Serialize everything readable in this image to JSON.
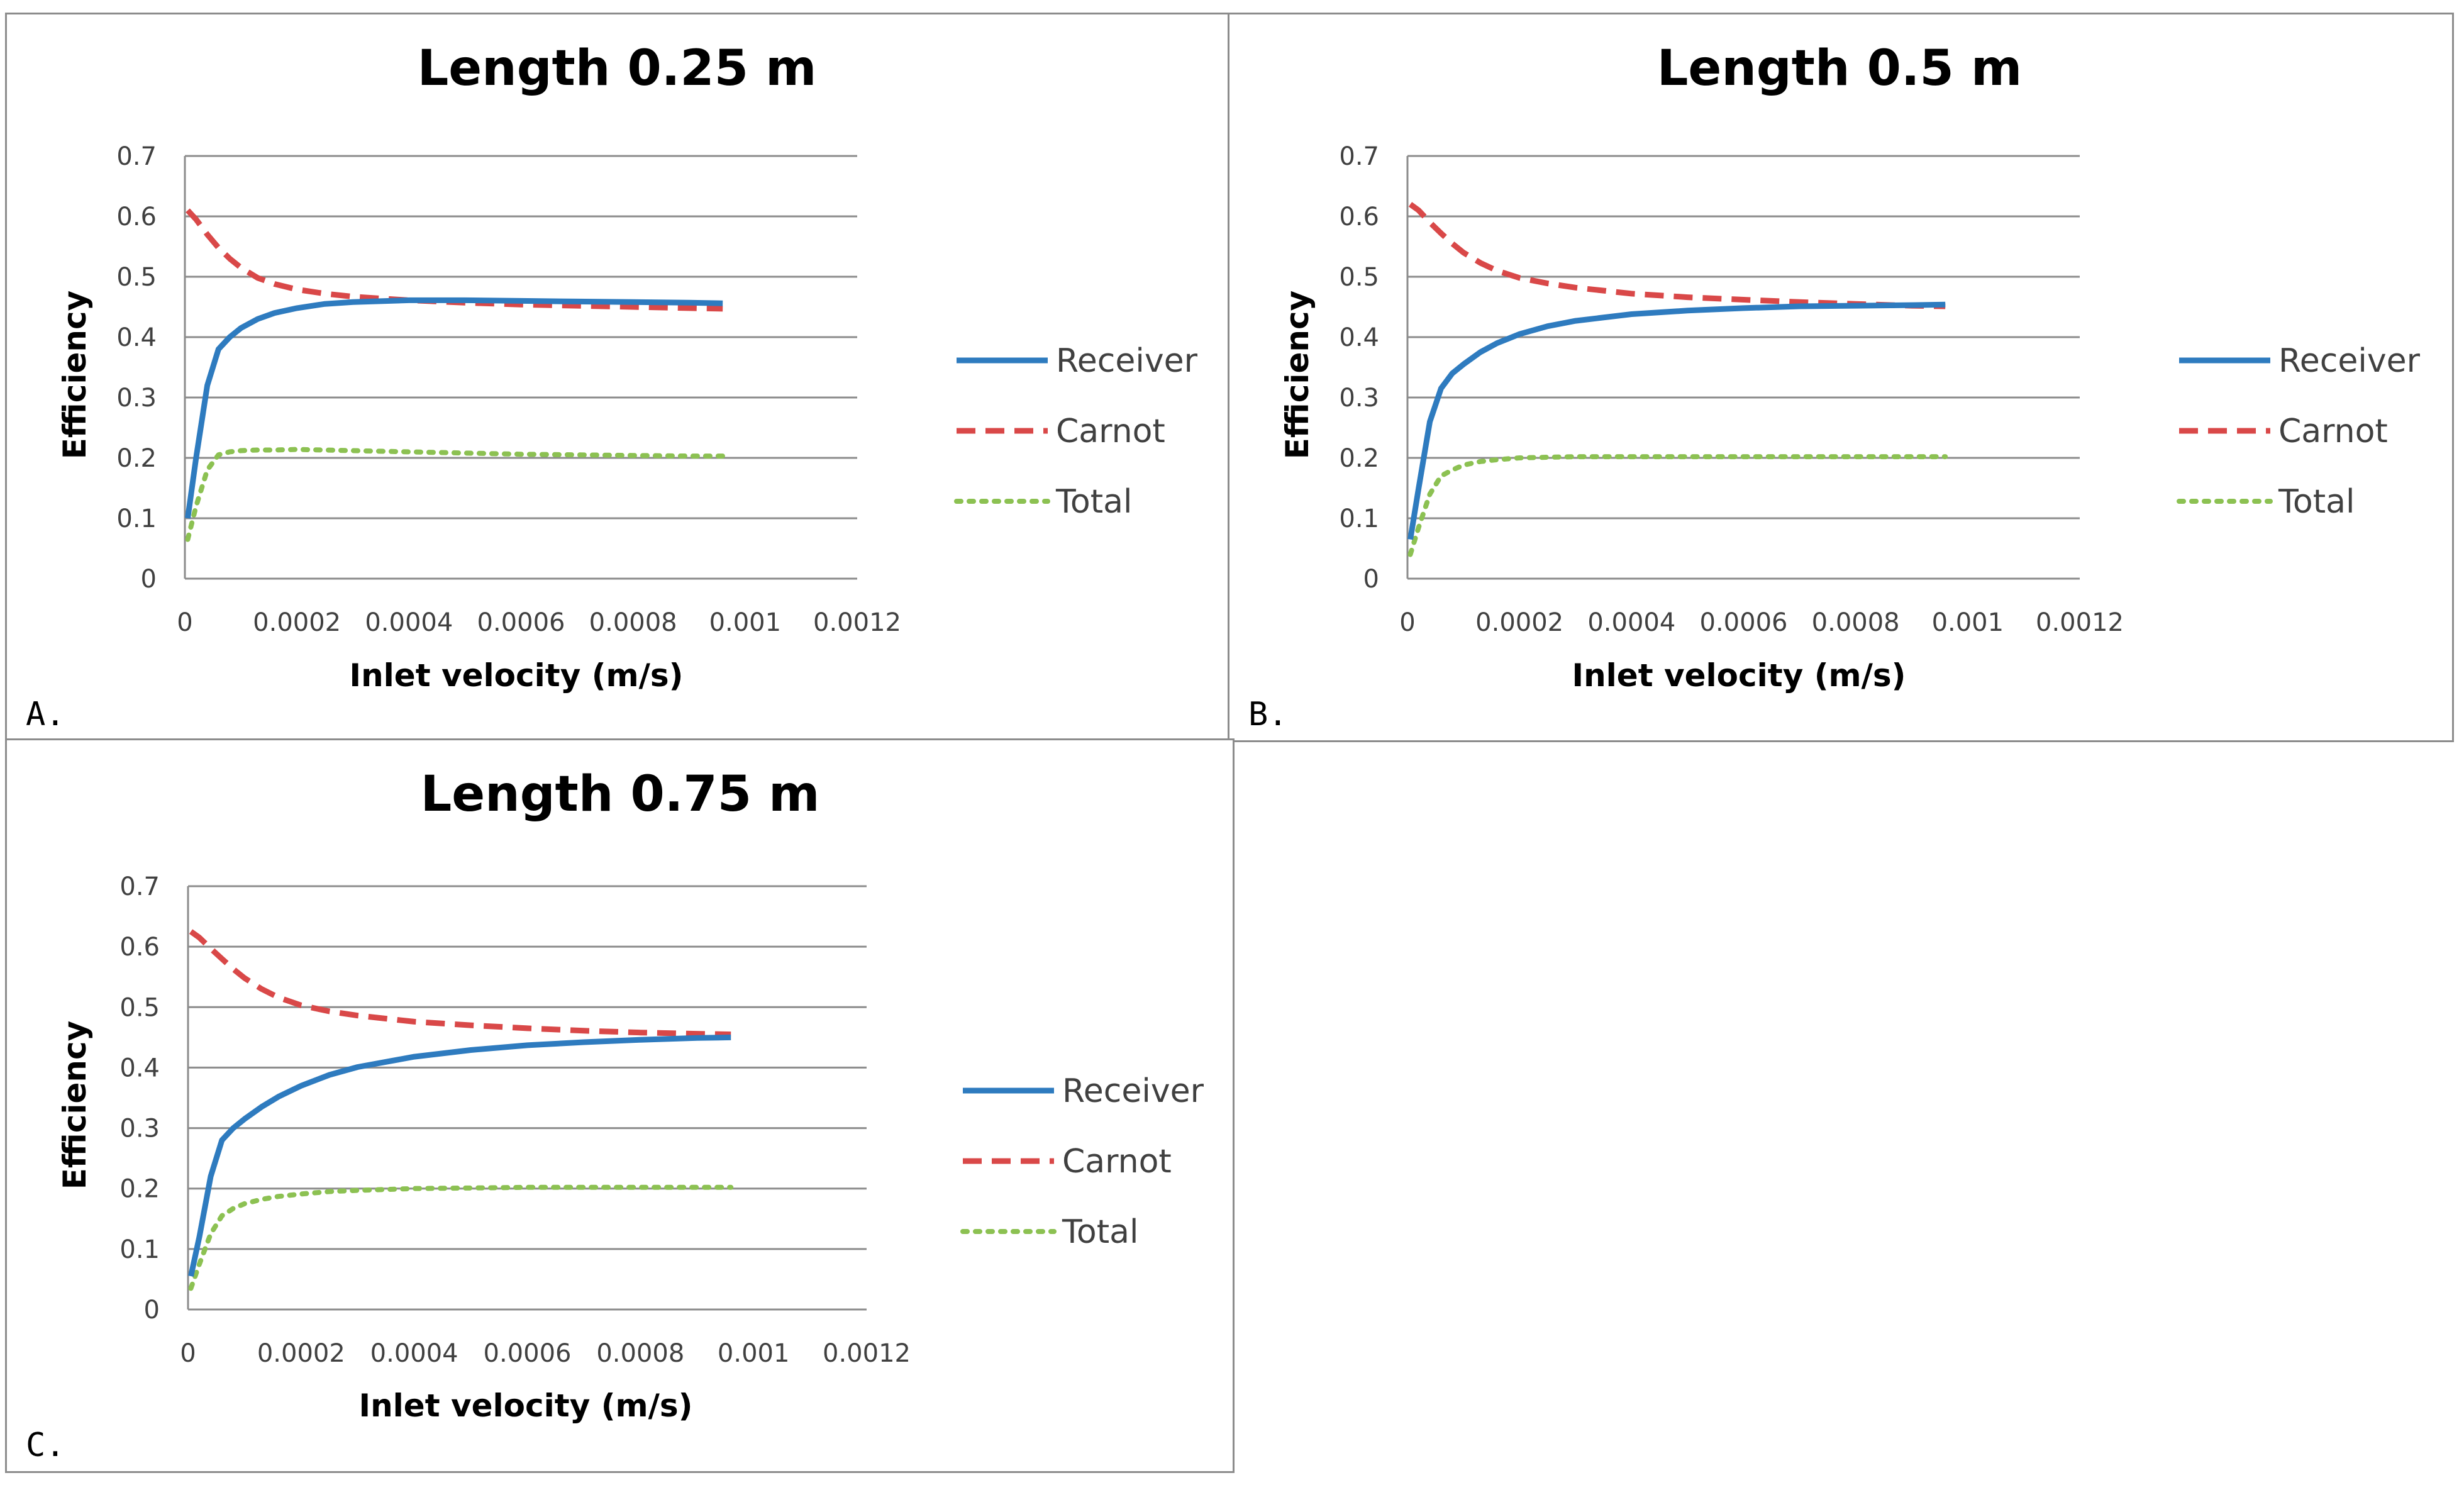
{
  "colors": {
    "receiver": "#2e7bbf",
    "carnot": "#d94848",
    "total": "#8cc152",
    "grid": "#8c8c8c"
  },
  "chart_data": [
    {
      "type": "line",
      "panel_label": "A.",
      "title": "Length 0.25 m",
      "xlabel": "Inlet velocity (m/s)",
      "ylabel": "Efficiency",
      "xlim": [
        0,
        0.0012
      ],
      "ylim": [
        0,
        0.7
      ],
      "xticks": [
        "0",
        "0.0002",
        "0.0004",
        "0.0006",
        "0.0008",
        "0.001",
        "0.0012"
      ],
      "yticks": [
        "0",
        "0.1",
        "0.2",
        "0.3",
        "0.4",
        "0.5",
        "0.6",
        "0.7"
      ],
      "legend": [
        "Receiver",
        "Carnot",
        "Total"
      ],
      "x": [
        5e-06,
        2e-05,
        4e-05,
        6e-05,
        8e-05,
        0.0001,
        0.00013,
        0.00016,
        0.0002,
        0.00025,
        0.0003,
        0.0004,
        0.0005,
        0.0006,
        0.0007,
        0.0008,
        0.0009,
        0.00096
      ],
      "series": [
        {
          "name": "Receiver",
          "style": "solid",
          "values": [
            0.1,
            0.2,
            0.32,
            0.38,
            0.4,
            0.415,
            0.43,
            0.44,
            0.448,
            0.455,
            0.458,
            0.461,
            0.461,
            0.46,
            0.459,
            0.458,
            0.457,
            0.456
          ]
        },
        {
          "name": "Carnot",
          "style": "dashed",
          "values": [
            0.61,
            0.595,
            0.57,
            0.548,
            0.53,
            0.515,
            0.498,
            0.488,
            0.479,
            0.472,
            0.467,
            0.461,
            0.457,
            0.454,
            0.452,
            0.45,
            0.448,
            0.447
          ]
        },
        {
          "name": "Total",
          "style": "dotted",
          "values": [
            0.065,
            0.12,
            0.18,
            0.205,
            0.21,
            0.212,
            0.213,
            0.213,
            0.214,
            0.213,
            0.212,
            0.21,
            0.208,
            0.206,
            0.205,
            0.204,
            0.203,
            0.203
          ]
        }
      ]
    },
    {
      "type": "line",
      "panel_label": "B.",
      "title": "Length 0.5 m",
      "xlabel": "Inlet velocity (m/s)",
      "ylabel": "Efficiency",
      "xlim": [
        0,
        0.0012
      ],
      "ylim": [
        0,
        0.7
      ],
      "xticks": [
        "0",
        "0.0002",
        "0.0004",
        "0.0006",
        "0.0008",
        "0.001",
        "0.0012"
      ],
      "yticks": [
        "0",
        "0.1",
        "0.2",
        "0.3",
        "0.4",
        "0.5",
        "0.6",
        "0.7"
      ],
      "legend": [
        "Receiver",
        "Carnot",
        "Total"
      ],
      "x": [
        5e-06,
        2e-05,
        4e-05,
        6e-05,
        8e-05,
        0.0001,
        0.00013,
        0.00016,
        0.0002,
        0.00025,
        0.0003,
        0.0004,
        0.0005,
        0.0006,
        0.0007,
        0.0008,
        0.0009,
        0.00096
      ],
      "series": [
        {
          "name": "Receiver",
          "style": "solid",
          "values": [
            0.065,
            0.15,
            0.26,
            0.315,
            0.34,
            0.355,
            0.375,
            0.39,
            0.405,
            0.418,
            0.427,
            0.438,
            0.444,
            0.448,
            0.451,
            0.452,
            0.453,
            0.454
          ]
        },
        {
          "name": "Carnot",
          "style": "dashed",
          "values": [
            0.62,
            0.61,
            0.59,
            0.572,
            0.555,
            0.54,
            0.523,
            0.51,
            0.498,
            0.489,
            0.482,
            0.472,
            0.466,
            0.462,
            0.458,
            0.455,
            0.452,
            0.451
          ]
        },
        {
          "name": "Total",
          "style": "dotted",
          "values": [
            0.04,
            0.085,
            0.14,
            0.17,
            0.18,
            0.188,
            0.194,
            0.197,
            0.2,
            0.201,
            0.202,
            0.202,
            0.202,
            0.202,
            0.202,
            0.202,
            0.202,
            0.202
          ]
        }
      ]
    },
    {
      "type": "line",
      "panel_label": "C.",
      "title": "Length 0.75 m",
      "xlabel": "Inlet velocity (m/s)",
      "ylabel": "Efficiency",
      "xlim": [
        0,
        0.0012
      ],
      "ylim": [
        0,
        0.7
      ],
      "xticks": [
        "0",
        "0.0002",
        "0.0004",
        "0.0006",
        "0.0008",
        "0.001",
        "0.0012"
      ],
      "yticks": [
        "0",
        "0.1",
        "0.2",
        "0.3",
        "0.4",
        "0.5",
        "0.6",
        "0.7"
      ],
      "legend": [
        "Receiver",
        "Carnot",
        "Total"
      ],
      "x": [
        5e-06,
        2e-05,
        4e-05,
        6e-05,
        8e-05,
        0.0001,
        0.00013,
        0.00016,
        0.0002,
        0.00025,
        0.0003,
        0.0004,
        0.0005,
        0.0006,
        0.0007,
        0.0008,
        0.0009,
        0.00096
      ],
      "series": [
        {
          "name": "Receiver",
          "style": "solid",
          "values": [
            0.055,
            0.12,
            0.22,
            0.28,
            0.3,
            0.315,
            0.335,
            0.352,
            0.37,
            0.388,
            0.401,
            0.418,
            0.429,
            0.437,
            0.442,
            0.446,
            0.449,
            0.45
          ]
        },
        {
          "name": "Carnot",
          "style": "dashed",
          "values": [
            0.625,
            0.615,
            0.597,
            0.58,
            0.563,
            0.548,
            0.53,
            0.516,
            0.503,
            0.493,
            0.486,
            0.476,
            0.47,
            0.465,
            0.461,
            0.458,
            0.456,
            0.455
          ]
        },
        {
          "name": "Total",
          "style": "dotted",
          "values": [
            0.035,
            0.075,
            0.125,
            0.155,
            0.167,
            0.175,
            0.182,
            0.187,
            0.191,
            0.195,
            0.197,
            0.2,
            0.201,
            0.202,
            0.202,
            0.202,
            0.202,
            0.202
          ]
        }
      ]
    }
  ]
}
